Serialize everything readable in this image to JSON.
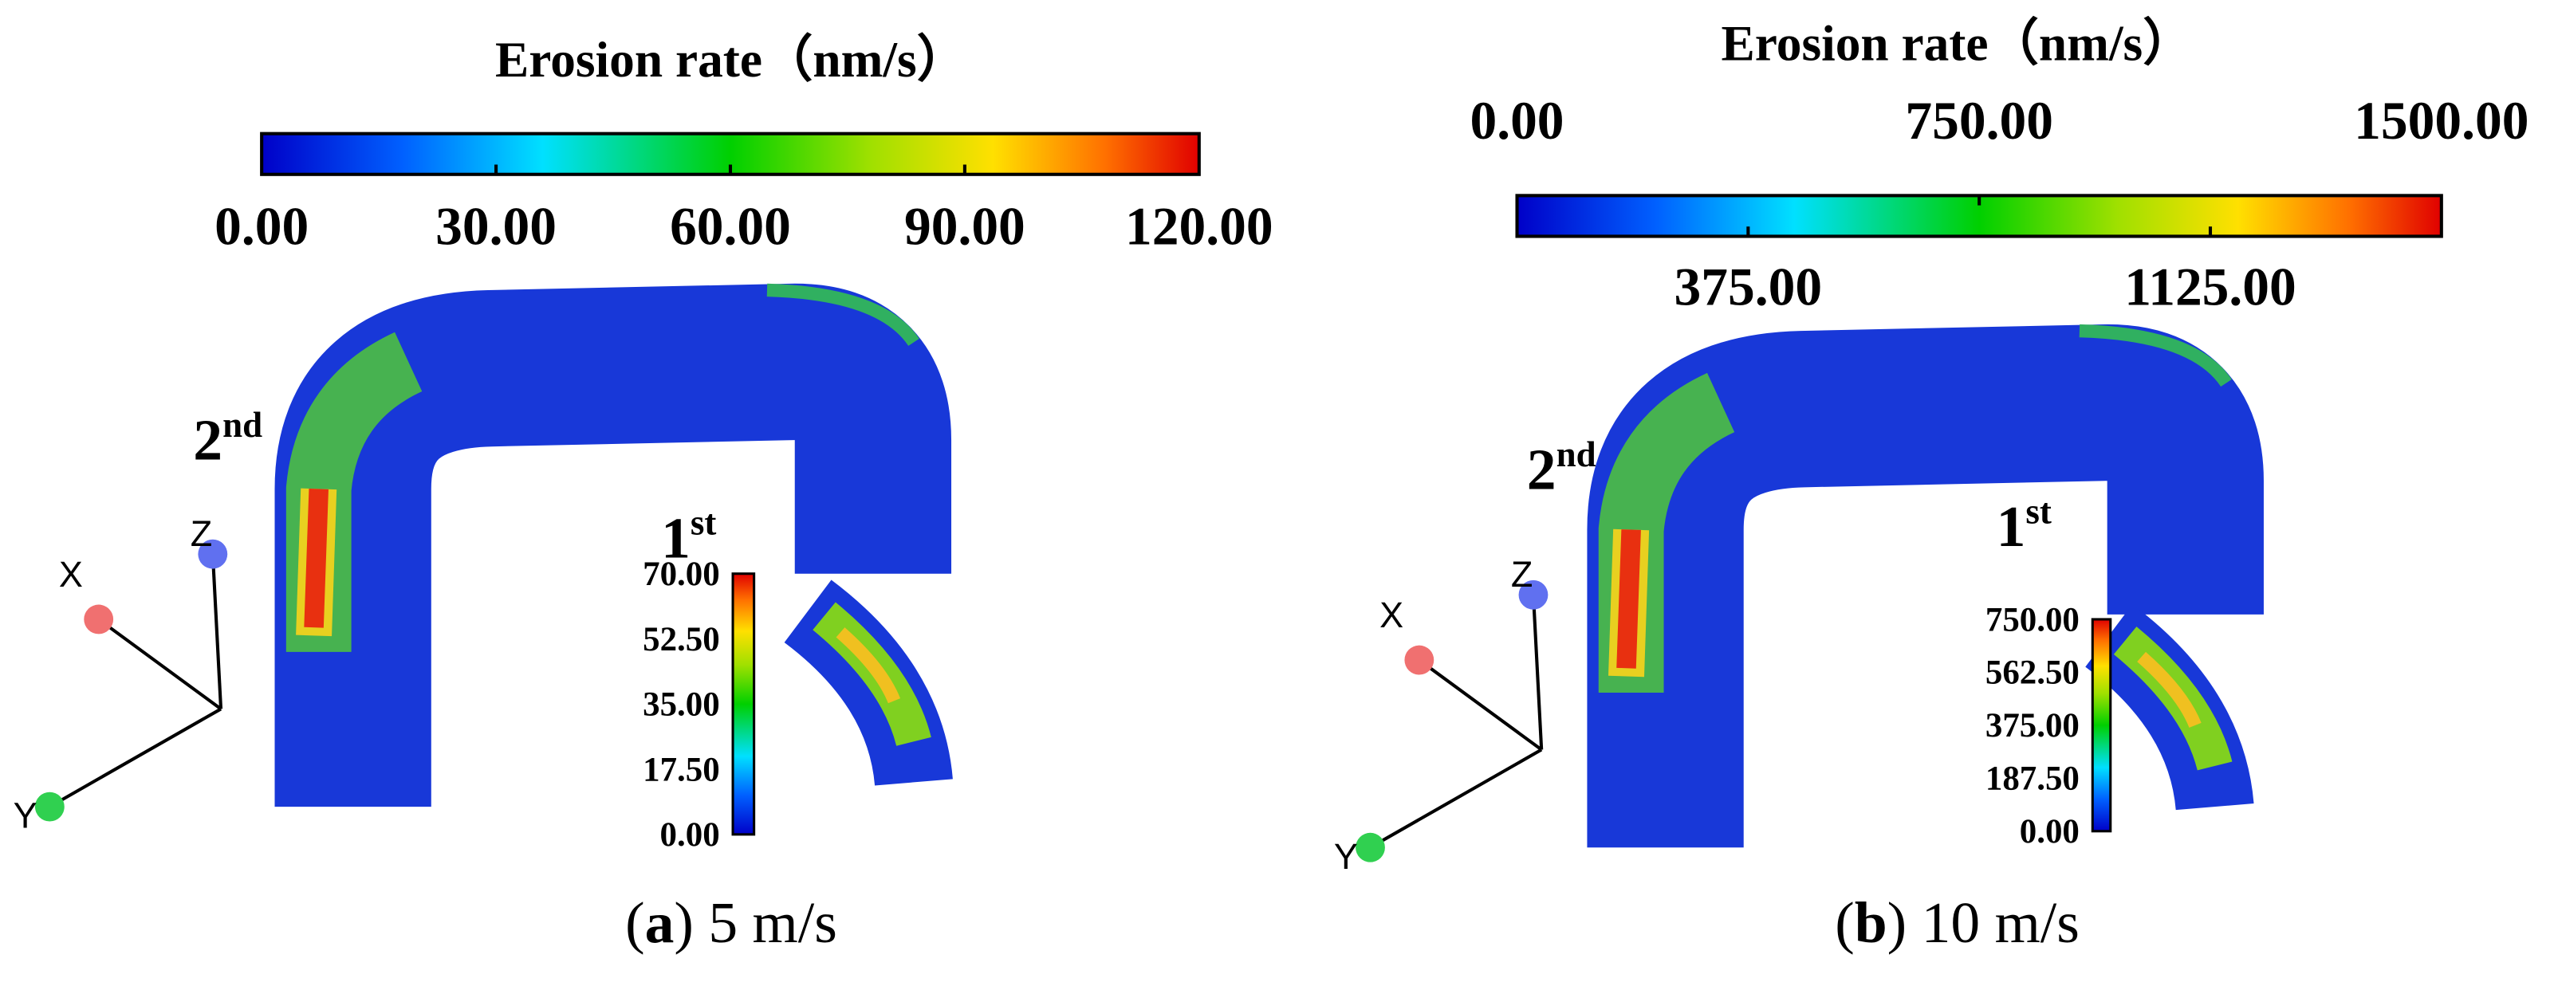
{
  "panels": [
    {
      "colorbar_title": "Erosion rate（nm/s）",
      "colorbar_ticks_top": [],
      "colorbar_ticks_bottom": [
        "0.00",
        "30.00",
        "60.00",
        "90.00",
        "120.00"
      ],
      "second_marker": {
        "base": "2",
        "sup": "nd"
      },
      "first_marker": {
        "base": "1",
        "sup": "st"
      },
      "inset_ticks": [
        "70.00",
        "52.50",
        "35.00",
        "17.50",
        "0.00"
      ],
      "axes": {
        "x": "X",
        "y": "Y",
        "z": "Z"
      },
      "caption": {
        "open": "(",
        "letter": "a",
        "rest": ") 5 m/s"
      }
    },
    {
      "colorbar_title": "Erosion rate（nm/s）",
      "colorbar_ticks_top": [
        "0.00",
        "750.00",
        "1500.00"
      ],
      "colorbar_ticks_bottom": [
        "375.00",
        "1125.00"
      ],
      "second_marker": {
        "base": "2",
        "sup": "nd"
      },
      "first_marker": {
        "base": "1",
        "sup": "st"
      },
      "inset_ticks": [
        "750.00",
        "562.50",
        "375.00",
        "187.50",
        "0.00"
      ],
      "axes": {
        "x": "X",
        "y": "Y",
        "z": "Z"
      },
      "caption": {
        "open": "(",
        "letter": "b",
        "rest": ") 10 m/s"
      }
    }
  ]
}
